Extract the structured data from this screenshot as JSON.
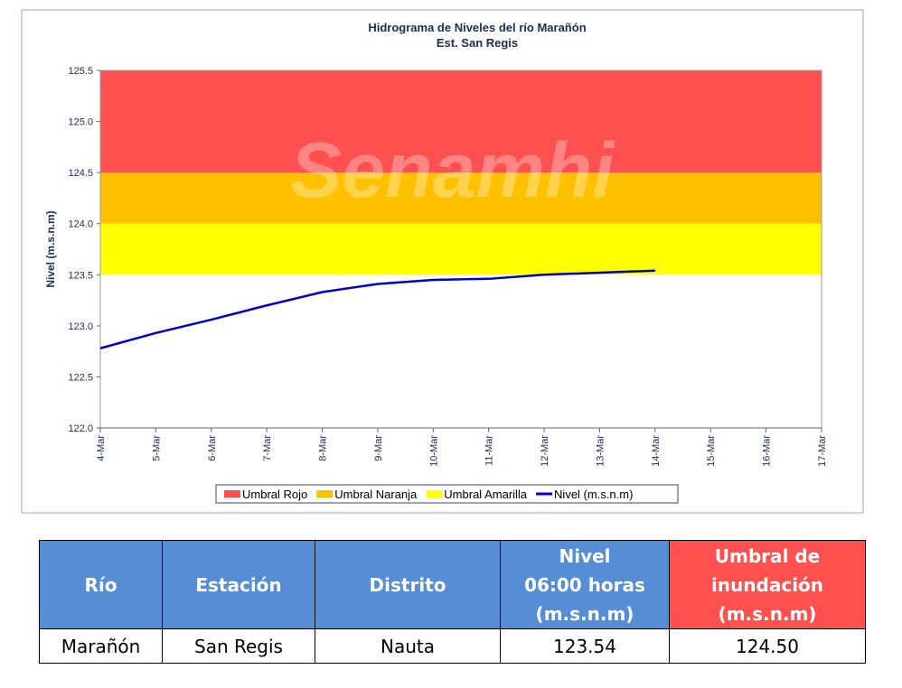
{
  "chart_data": {
    "type": "line",
    "title": "Hidrograma de Niveles del río Marañón",
    "subtitle": "Est. San Regis",
    "y_label": "Nivel (m.s.n.m)",
    "watermark": "Senamhi",
    "categories": [
      "4-Mar",
      "5-Mar",
      "6-Mar",
      "7-Mar",
      "8-Mar",
      "9-Mar",
      "10-Mar",
      "11-Mar",
      "12-Mar",
      "13-Mar",
      "14-Mar",
      "15-Mar",
      "16-Mar",
      "17-Mar"
    ],
    "bands": [
      {
        "name": "Umbral Rojo",
        "color": "#ff5050",
        "range": [
          124.5,
          125.5
        ]
      },
      {
        "name": "Umbral Naranja",
        "color": "#ffc000",
        "range": [
          124.0,
          124.5
        ]
      },
      {
        "name": "Umbral Amarilla",
        "color": "#ffff00",
        "range": [
          123.5,
          124.0
        ]
      }
    ],
    "series": [
      {
        "name": "Nivel (m.s.n.m)",
        "color": "#0000cc",
        "values": [
          122.78,
          122.93,
          123.06,
          123.2,
          123.33,
          123.41,
          123.45,
          123.46,
          123.5,
          123.52,
          123.54,
          null,
          null,
          null
        ]
      }
    ],
    "ylim": [
      122.0,
      125.5
    ],
    "yticks": [
      {
        "value": 122,
        "label": "122.0"
      },
      {
        "value": 122.5,
        "label": "122.5"
      },
      {
        "value": 123,
        "label": "123.0"
      },
      {
        "value": 123.5,
        "label": "123.5"
      },
      {
        "value": 124,
        "label": "124.0"
      },
      {
        "value": 124.5,
        "label": "124.5"
      },
      {
        "value": 125,
        "label": "125.0"
      },
      {
        "value": 125.5,
        "label": "125.5"
      }
    ],
    "legend": "bottom"
  },
  "table": {
    "header": [
      "Río",
      "Estación",
      "Distrito",
      "Nivel\n06:00 horas\n(m.s.n.m)",
      "Umbral de\ninundación\n(m.s.n.m)"
    ],
    "rows": [
      [
        "Marañón",
        "San Regis",
        "Nauta",
        "123.54",
        "124.50"
      ]
    ]
  }
}
